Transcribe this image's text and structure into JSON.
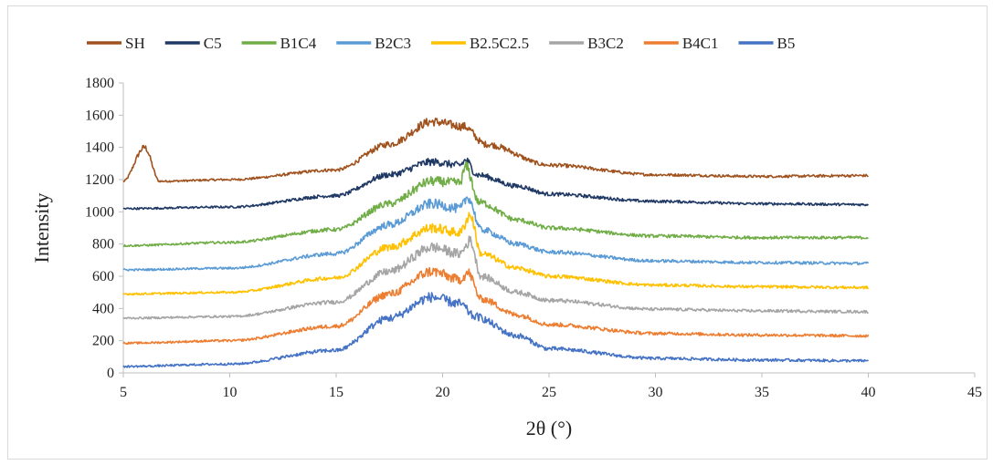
{
  "chart_data": {
    "type": "line",
    "title": "",
    "xlabel": "2θ (°)",
    "ylabel": "Intensity",
    "xlim": [
      5,
      45
    ],
    "ylim": [
      0,
      1800
    ],
    "x_ticks": [
      5,
      10,
      15,
      20,
      25,
      30,
      35,
      40,
      45
    ],
    "y_ticks": [
      0,
      200,
      400,
      600,
      800,
      1000,
      1200,
      1400,
      1600,
      1800
    ],
    "grid": false,
    "legend_position": "top",
    "x_range": [
      5,
      40
    ],
    "series": [
      {
        "name": "SH",
        "color": "#a0521e",
        "peaks": [
          [
            5,
            1190
          ],
          [
            6,
            1400
          ],
          [
            6.7,
            1190
          ],
          [
            10,
            1200
          ],
          [
            15,
            1260
          ],
          [
            17.5,
            1420
          ],
          [
            19.5,
            1560
          ],
          [
            21,
            1530
          ],
          [
            22,
            1420
          ],
          [
            25,
            1290
          ],
          [
            30,
            1230
          ],
          [
            35,
            1220
          ],
          [
            40,
            1225
          ]
        ]
      },
      {
        "name": "C5",
        "color": "#1f3864",
        "peaks": [
          [
            5,
            1020
          ],
          [
            10,
            1030
          ],
          [
            15,
            1100
          ],
          [
            17.5,
            1230
          ],
          [
            19.5,
            1310
          ],
          [
            20.8,
            1290
          ],
          [
            21.1,
            1320
          ],
          [
            21.6,
            1230
          ],
          [
            23.5,
            1160
          ],
          [
            25,
            1110
          ],
          [
            30,
            1065
          ],
          [
            35,
            1050
          ],
          [
            40,
            1045
          ]
        ]
      },
      {
        "name": "B1C4",
        "color": "#70ad47",
        "peaks": [
          [
            5,
            790
          ],
          [
            10,
            810
          ],
          [
            15,
            890
          ],
          [
            17.5,
            1050
          ],
          [
            19.5,
            1190
          ],
          [
            20.8,
            1180
          ],
          [
            21.1,
            1280
          ],
          [
            21.7,
            1060
          ],
          [
            23.5,
            950
          ],
          [
            25,
            900
          ],
          [
            30,
            850
          ],
          [
            35,
            840
          ],
          [
            40,
            840
          ]
        ]
      },
      {
        "name": "B2C3",
        "color": "#5b9bd5",
        "peaks": [
          [
            5,
            640
          ],
          [
            10,
            650
          ],
          [
            15,
            740
          ],
          [
            17.5,
            920
          ],
          [
            19.5,
            1050
          ],
          [
            20.8,
            1020
          ],
          [
            21.2,
            1090
          ],
          [
            21.8,
            890
          ],
          [
            23.5,
            800
          ],
          [
            25,
            750
          ],
          [
            30,
            695
          ],
          [
            35,
            685
          ],
          [
            40,
            680
          ]
        ]
      },
      {
        "name": "B2.5C2.5",
        "color": "#ffc000",
        "peaks": [
          [
            5,
            490
          ],
          [
            10,
            500
          ],
          [
            15,
            590
          ],
          [
            17.5,
            780
          ],
          [
            19.5,
            900
          ],
          [
            20.8,
            870
          ],
          [
            21.3,
            980
          ],
          [
            21.8,
            740
          ],
          [
            23.5,
            650
          ],
          [
            25,
            600
          ],
          [
            30,
            545
          ],
          [
            35,
            535
          ],
          [
            40,
            530
          ]
        ]
      },
      {
        "name": "B3C2",
        "color": "#a5a5a5",
        "peaks": [
          [
            5,
            340
          ],
          [
            10,
            350
          ],
          [
            15,
            440
          ],
          [
            17.5,
            630
          ],
          [
            19.5,
            780
          ],
          [
            20.8,
            740
          ],
          [
            21.3,
            820
          ],
          [
            21.8,
            600
          ],
          [
            23.5,
            500
          ],
          [
            25,
            450
          ],
          [
            30,
            395
          ],
          [
            35,
            385
          ],
          [
            40,
            380
          ]
        ]
      },
      {
        "name": "B4C1",
        "color": "#ed7d31",
        "peaks": [
          [
            5,
            185
          ],
          [
            10,
            200
          ],
          [
            15,
            290
          ],
          [
            17.5,
            490
          ],
          [
            19.5,
            630
          ],
          [
            20.8,
            580
          ],
          [
            21.2,
            620
          ],
          [
            21.8,
            460
          ],
          [
            23.5,
            360
          ],
          [
            25,
            300
          ],
          [
            30,
            245
          ],
          [
            35,
            235
          ],
          [
            40,
            230
          ]
        ]
      },
      {
        "name": "B5",
        "color": "#4472c4",
        "peaks": [
          [
            5,
            40
          ],
          [
            10,
            55
          ],
          [
            15,
            140
          ],
          [
            17.5,
            340
          ],
          [
            19.5,
            470
          ],
          [
            20.8,
            430
          ],
          [
            21.5,
            350
          ],
          [
            23.5,
            230
          ],
          [
            25,
            150
          ],
          [
            30,
            90
          ],
          [
            35,
            80
          ],
          [
            40,
            75
          ]
        ]
      }
    ]
  }
}
